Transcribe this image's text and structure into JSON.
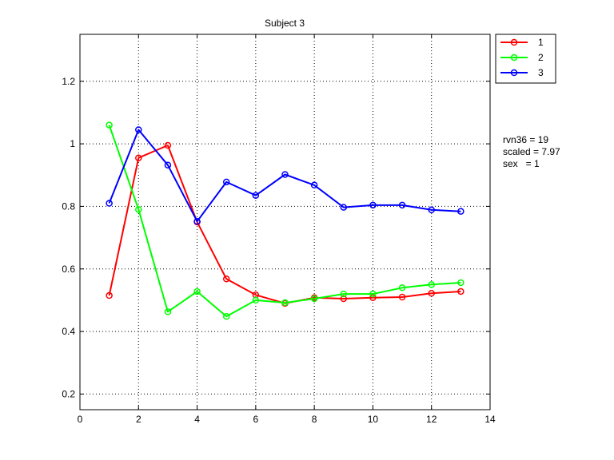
{
  "chart_data": {
    "type": "line",
    "title": "Subject 3",
    "xlabel": "",
    "ylabel": "",
    "xlim": [
      0,
      14
    ],
    "ylim": [
      0.15,
      1.35
    ],
    "xticks": [
      0,
      2,
      4,
      6,
      8,
      10,
      12,
      14
    ],
    "xtick_labels": [
      "0",
      "2",
      "4",
      "6",
      "8",
      "10",
      "12",
      "14"
    ],
    "yticks": [
      0.2,
      0.4,
      0.6,
      0.8,
      1.0,
      1.2
    ],
    "ytick_labels": [
      "0.2",
      "0.4",
      "0.6",
      "0.8",
      "1",
      "1.2"
    ],
    "grid": true,
    "grid_style": "dotted",
    "legend_position": "outside-top-right",
    "marker": "circle",
    "x": [
      1,
      2,
      3,
      4,
      5,
      6,
      7,
      8,
      9,
      10,
      11,
      12,
      13
    ],
    "series": [
      {
        "name": "1",
        "color": "#ff0000",
        "values": [
          0.515,
          0.955,
          0.995,
          0.75,
          0.568,
          0.517,
          0.49,
          0.508,
          0.505,
          0.508,
          0.51,
          0.522,
          0.528
        ]
      },
      {
        "name": "2",
        "color": "#00ff00",
        "values": [
          1.06,
          0.79,
          0.463,
          0.528,
          0.448,
          0.5,
          0.492,
          0.505,
          0.52,
          0.52,
          0.54,
          0.55,
          0.556
        ]
      },
      {
        "name": "3",
        "color": "#0000ff",
        "values": [
          0.81,
          1.045,
          0.932,
          0.752,
          0.878,
          0.835,
          0.902,
          0.868,
          0.797,
          0.804,
          0.804,
          0.789,
          0.784
        ]
      }
    ]
  },
  "annotations": {
    "line1": "rvn36 = 19",
    "line2": "scaled = 7.97",
    "line3": "sex   = 1"
  }
}
